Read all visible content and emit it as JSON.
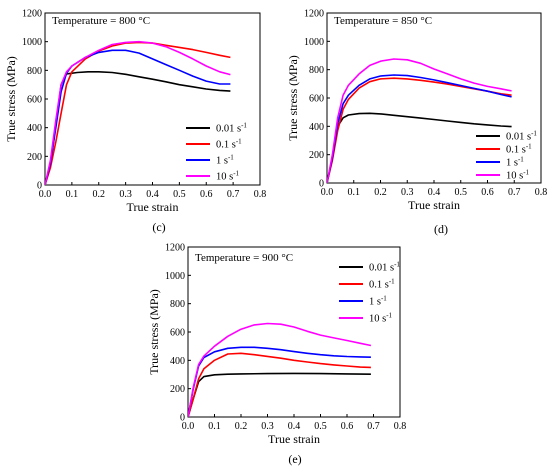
{
  "chart_data": [
    {
      "type": "line",
      "panel_label": "(c)",
      "annotation": "Temperature = 800 °C",
      "xlabel": "True strain",
      "ylabel": "True stress (MPa)",
      "xlim": [
        0.0,
        0.8
      ],
      "ylim": [
        0,
        1200
      ],
      "x_ticks": [
        "0.0",
        "0.1",
        "0.2",
        "0.3",
        "0.4",
        "0.5",
        "0.6",
        "0.7",
        "0.8"
      ],
      "y_ticks": [
        "0",
        "200",
        "400",
        "600",
        "800",
        "1000",
        "1200"
      ],
      "legend_placement": "lower-right",
      "series": [
        {
          "name": "0.01 s",
          "unit_exp": "-1",
          "color": "#000000",
          "points": [
            [
              0,
              0
            ],
            [
              0.02,
              140
            ],
            [
              0.04,
              420
            ],
            [
              0.06,
              700
            ],
            [
              0.08,
              775
            ],
            [
              0.12,
              785
            ],
            [
              0.16,
              790
            ],
            [
              0.2,
              790
            ],
            [
              0.25,
              785
            ],
            [
              0.3,
              772
            ],
            [
              0.35,
              755
            ],
            [
              0.4,
              738
            ],
            [
              0.45,
              720
            ],
            [
              0.5,
              700
            ],
            [
              0.55,
              685
            ],
            [
              0.6,
              670
            ],
            [
              0.65,
              660
            ],
            [
              0.69,
              655
            ]
          ]
        },
        {
          "name": "0.1 s",
          "unit_exp": "-1",
          "color": "#ff0000",
          "points": [
            [
              0,
              0
            ],
            [
              0.02,
              120
            ],
            [
              0.04,
              300
            ],
            [
              0.06,
              500
            ],
            [
              0.08,
              700
            ],
            [
              0.1,
              790
            ],
            [
              0.15,
              880
            ],
            [
              0.2,
              935
            ],
            [
              0.25,
              970
            ],
            [
              0.3,
              990
            ],
            [
              0.35,
              995
            ],
            [
              0.4,
              990
            ],
            [
              0.45,
              975
            ],
            [
              0.5,
              960
            ],
            [
              0.55,
              945
            ],
            [
              0.6,
              925
            ],
            [
              0.65,
              905
            ],
            [
              0.69,
              890
            ]
          ]
        },
        {
          "name": "1 s",
          "unit_exp": "-1",
          "color": "#0000ff",
          "points": [
            [
              0,
              0
            ],
            [
              0.02,
              150
            ],
            [
              0.04,
              400
            ],
            [
              0.06,
              650
            ],
            [
              0.08,
              780
            ],
            [
              0.1,
              830
            ],
            [
              0.15,
              890
            ],
            [
              0.2,
              925
            ],
            [
              0.25,
              940
            ],
            [
              0.3,
              940
            ],
            [
              0.35,
              920
            ],
            [
              0.4,
              880
            ],
            [
              0.45,
              840
            ],
            [
              0.5,
              800
            ],
            [
              0.55,
              760
            ],
            [
              0.6,
              725
            ],
            [
              0.65,
              705
            ],
            [
              0.69,
              705
            ]
          ]
        },
        {
          "name": "10 s",
          "unit_exp": "-1",
          "color": "#ff00ff",
          "points": [
            [
              0,
              0
            ],
            [
              0.02,
              170
            ],
            [
              0.04,
              450
            ],
            [
              0.06,
              700
            ],
            [
              0.08,
              790
            ],
            [
              0.1,
              830
            ],
            [
              0.15,
              890
            ],
            [
              0.2,
              940
            ],
            [
              0.25,
              980
            ],
            [
              0.3,
              995
            ],
            [
              0.35,
              1000
            ],
            [
              0.4,
              990
            ],
            [
              0.45,
              965
            ],
            [
              0.5,
              925
            ],
            [
              0.55,
              880
            ],
            [
              0.6,
              830
            ],
            [
              0.65,
              790
            ],
            [
              0.69,
              770
            ]
          ]
        }
      ]
    },
    {
      "type": "line",
      "panel_label": "(d)",
      "annotation": "Temperature = 850 °C",
      "xlabel": "True strain",
      "ylabel": "True stress (MPa)",
      "xlim": [
        0.0,
        0.8
      ],
      "ylim": [
        0,
        1200
      ],
      "x_ticks": [
        "0.0",
        "0.1",
        "0.2",
        "0.3",
        "0.4",
        "0.5",
        "0.6",
        "0.7",
        "0.8"
      ],
      "y_ticks": [
        "0",
        "200",
        "400",
        "600",
        "800",
        "1000",
        "1200"
      ],
      "legend_placement": "lower-right",
      "series": [
        {
          "name": "0.01 s",
          "unit_exp": "-1",
          "color": "#000000",
          "points": [
            [
              0,
              0
            ],
            [
              0.02,
              180
            ],
            [
              0.04,
              400
            ],
            [
              0.06,
              460
            ],
            [
              0.08,
              480
            ],
            [
              0.12,
              490
            ],
            [
              0.16,
              492
            ],
            [
              0.2,
              488
            ],
            [
              0.25,
              478
            ],
            [
              0.3,
              468
            ],
            [
              0.35,
              458
            ],
            [
              0.4,
              448
            ],
            [
              0.45,
              438
            ],
            [
              0.5,
              428
            ],
            [
              0.55,
              418
            ],
            [
              0.6,
              410
            ],
            [
              0.65,
              402
            ],
            [
              0.69,
              398
            ]
          ]
        },
        {
          "name": "0.1 s",
          "unit_exp": "-1",
          "color": "#ff0000",
          "points": [
            [
              0,
              0
            ],
            [
              0.02,
              160
            ],
            [
              0.04,
              370
            ],
            [
              0.06,
              520
            ],
            [
              0.08,
              590
            ],
            [
              0.12,
              670
            ],
            [
              0.16,
              715
            ],
            [
              0.2,
              735
            ],
            [
              0.25,
              740
            ],
            [
              0.3,
              735
            ],
            [
              0.35,
              725
            ],
            [
              0.4,
              712
            ],
            [
              0.45,
              698
            ],
            [
              0.5,
              682
            ],
            [
              0.55,
              665
            ],
            [
              0.6,
              648
            ],
            [
              0.65,
              630
            ],
            [
              0.69,
              620
            ]
          ]
        },
        {
          "name": "1 s",
          "unit_exp": "-1",
          "color": "#0000ff",
          "points": [
            [
              0,
              0
            ],
            [
              0.02,
              180
            ],
            [
              0.04,
              420
            ],
            [
              0.06,
              560
            ],
            [
              0.08,
              620
            ],
            [
              0.12,
              690
            ],
            [
              0.16,
              735
            ],
            [
              0.2,
              755
            ],
            [
              0.25,
              762
            ],
            [
              0.3,
              758
            ],
            [
              0.35,
              745
            ],
            [
              0.4,
              728
            ],
            [
              0.45,
              708
            ],
            [
              0.5,
              688
            ],
            [
              0.55,
              668
            ],
            [
              0.6,
              648
            ],
            [
              0.65,
              625
            ],
            [
              0.69,
              608
            ]
          ]
        },
        {
          "name": "10 s",
          "unit_exp": "-1",
          "color": "#ff00ff",
          "points": [
            [
              0,
              0
            ],
            [
              0.02,
              200
            ],
            [
              0.04,
              460
            ],
            [
              0.06,
              620
            ],
            [
              0.08,
              690
            ],
            [
              0.12,
              770
            ],
            [
              0.16,
              830
            ],
            [
              0.2,
              860
            ],
            [
              0.25,
              875
            ],
            [
              0.3,
              870
            ],
            [
              0.35,
              845
            ],
            [
              0.4,
              805
            ],
            [
              0.45,
              770
            ],
            [
              0.5,
              735
            ],
            [
              0.55,
              705
            ],
            [
              0.6,
              682
            ],
            [
              0.65,
              665
            ],
            [
              0.69,
              650
            ]
          ]
        }
      ]
    },
    {
      "type": "line",
      "panel_label": "(e)",
      "annotation": "Temperature = 900 °C",
      "xlabel": "True strain",
      "ylabel": "True stress (MPa)",
      "xlim": [
        0.0,
        0.8
      ],
      "ylim": [
        0,
        1200
      ],
      "x_ticks": [
        "0.0",
        "0.1",
        "0.2",
        "0.3",
        "0.4",
        "0.5",
        "0.6",
        "0.7",
        "0.8"
      ],
      "y_ticks": [
        "0",
        "200",
        "400",
        "600",
        "800",
        "1000",
        "1200"
      ],
      "legend_placement": "upper-right",
      "series": [
        {
          "name": "0.01 s",
          "unit_exp": "-1",
          "color": "#000000",
          "points": [
            [
              0,
              0
            ],
            [
              0.02,
              130
            ],
            [
              0.04,
              250
            ],
            [
              0.06,
              285
            ],
            [
              0.1,
              298
            ],
            [
              0.15,
              302
            ],
            [
              0.2,
              304
            ],
            [
              0.3,
              306
            ],
            [
              0.4,
              308
            ],
            [
              0.5,
              306
            ],
            [
              0.6,
              304
            ],
            [
              0.69,
              302
            ]
          ]
        },
        {
          "name": "0.1 s",
          "unit_exp": "-1",
          "color": "#ff0000",
          "points": [
            [
              0,
              0
            ],
            [
              0.02,
              130
            ],
            [
              0.04,
              270
            ],
            [
              0.06,
              340
            ],
            [
              0.1,
              400
            ],
            [
              0.15,
              445
            ],
            [
              0.2,
              450
            ],
            [
              0.25,
              440
            ],
            [
              0.3,
              428
            ],
            [
              0.35,
              415
            ],
            [
              0.4,
              400
            ],
            [
              0.45,
              388
            ],
            [
              0.5,
              377
            ],
            [
              0.55,
              368
            ],
            [
              0.6,
              360
            ],
            [
              0.65,
              352
            ],
            [
              0.69,
              350
            ]
          ]
        },
        {
          "name": "1 s",
          "unit_exp": "-1",
          "color": "#0000ff",
          "points": [
            [
              0,
              0
            ],
            [
              0.02,
              200
            ],
            [
              0.04,
              360
            ],
            [
              0.06,
              420
            ],
            [
              0.1,
              460
            ],
            [
              0.15,
              485
            ],
            [
              0.2,
              492
            ],
            [
              0.25,
              492
            ],
            [
              0.3,
              485
            ],
            [
              0.35,
              475
            ],
            [
              0.4,
              462
            ],
            [
              0.45,
              450
            ],
            [
              0.5,
              440
            ],
            [
              0.55,
              432
            ],
            [
              0.6,
              427
            ],
            [
              0.65,
              424
            ],
            [
              0.69,
              422
            ]
          ]
        },
        {
          "name": "10 s",
          "unit_exp": "-1",
          "color": "#ff00ff",
          "points": [
            [
              0,
              0
            ],
            [
              0.02,
              210
            ],
            [
              0.04,
              370
            ],
            [
              0.06,
              430
            ],
            [
              0.1,
              500
            ],
            [
              0.15,
              570
            ],
            [
              0.2,
              620
            ],
            [
              0.25,
              650
            ],
            [
              0.3,
              660
            ],
            [
              0.35,
              655
            ],
            [
              0.4,
              635
            ],
            [
              0.45,
              605
            ],
            [
              0.5,
              578
            ],
            [
              0.55,
              558
            ],
            [
              0.6,
              540
            ],
            [
              0.65,
              520
            ],
            [
              0.69,
              505
            ]
          ]
        }
      ]
    }
  ]
}
